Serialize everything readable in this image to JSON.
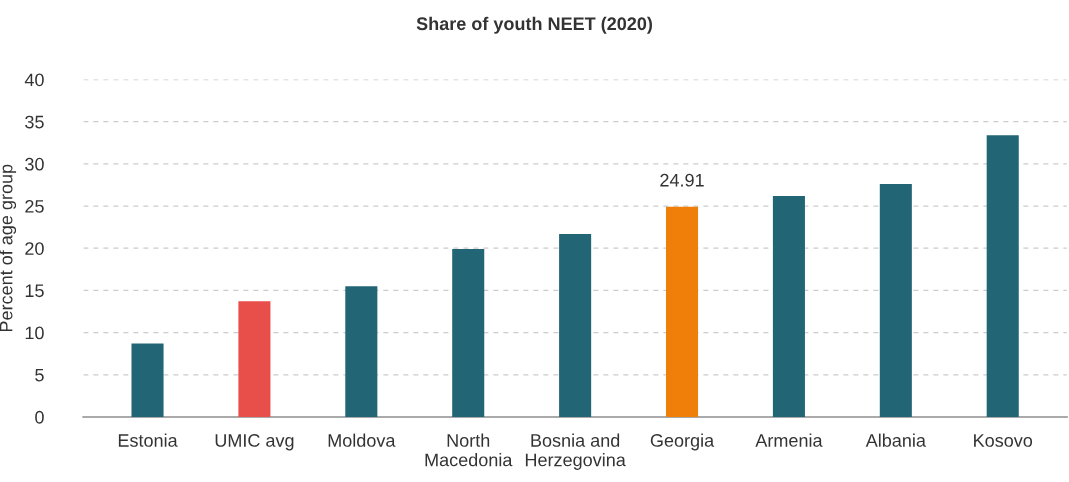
{
  "chart_data": {
    "type": "bar",
    "title": "Share of youth NEET (2020)",
    "ylabel": "Percent of age group",
    "categories": [
      "Estonia",
      "UMIC avg",
      "Moldova",
      "North\nMacedonia",
      "Bosnia and\nHerzegovina",
      "Georgia",
      "Armenia",
      "Albania",
      "Kosovo"
    ],
    "values": [
      8.7,
      13.7,
      15.5,
      19.9,
      21.7,
      24.91,
      26.2,
      27.6,
      33.4
    ],
    "colors": [
      "#226675",
      "#e84f4a",
      "#226675",
      "#226675",
      "#226675",
      "#f07f0a",
      "#226675",
      "#226675",
      "#226675"
    ],
    "value_labels": [
      null,
      null,
      null,
      null,
      null,
      "24.91",
      null,
      null,
      null
    ],
    "ylim": [
      0,
      40
    ],
    "yticks": [
      0,
      5,
      10,
      15,
      20,
      25,
      30,
      35,
      40
    ],
    "grid": "y",
    "legend": false
  }
}
